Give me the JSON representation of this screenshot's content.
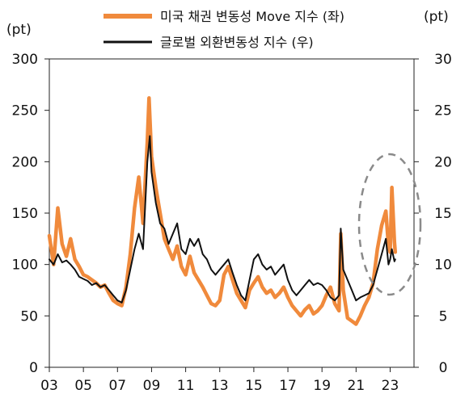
{
  "chart_data": {
    "type": "line",
    "title": "",
    "left_unit": "(pt)",
    "right_unit": "(pt)",
    "x_tick_labels": [
      "03",
      "05",
      "07",
      "09",
      "11",
      "13",
      "15",
      "17",
      "19",
      "21",
      "23"
    ],
    "x_tick_years": [
      2003,
      2005,
      2007,
      2009,
      2011,
      2013,
      2015,
      2017,
      2019,
      2021,
      2023
    ],
    "xlim": [
      2003,
      2024.4
    ],
    "y_left_ticks": [
      "0",
      "50",
      "100",
      "150",
      "200",
      "250",
      "300"
    ],
    "y_right_ticks": [
      "0",
      "5",
      "10",
      "15",
      "20",
      "25",
      "30"
    ],
    "ylim_left": [
      0,
      300
    ],
    "ylim_right": [
      0,
      30
    ],
    "grid": false,
    "legend_position": "top",
    "annotation": "dashed-ellipse-around-2022-2023",
    "series": [
      {
        "name": "미국 채권 변동성 Move 지수 (좌)",
        "axis": "left",
        "color": "#f08a3c",
        "points": [
          [
            2003.0,
            128
          ],
          [
            2003.25,
            100
          ],
          [
            2003.5,
            155
          ],
          [
            2003.75,
            120
          ],
          [
            2004.0,
            108
          ],
          [
            2004.25,
            125
          ],
          [
            2004.5,
            105
          ],
          [
            2004.75,
            98
          ],
          [
            2005.0,
            90
          ],
          [
            2005.25,
            88
          ],
          [
            2005.5,
            85
          ],
          [
            2005.75,
            82
          ],
          [
            2006.0,
            78
          ],
          [
            2006.25,
            80
          ],
          [
            2006.5,
            72
          ],
          [
            2006.75,
            65
          ],
          [
            2007.0,
            62
          ],
          [
            2007.25,
            60
          ],
          [
            2007.5,
            78
          ],
          [
            2007.75,
            110
          ],
          [
            2008.0,
            155
          ],
          [
            2008.25,
            185
          ],
          [
            2008.5,
            140
          ],
          [
            2008.75,
            220
          ],
          [
            2008.85,
            262
          ],
          [
            2009.0,
            205
          ],
          [
            2009.25,
            175
          ],
          [
            2009.5,
            150
          ],
          [
            2009.75,
            125
          ],
          [
            2010.0,
            115
          ],
          [
            2010.25,
            105
          ],
          [
            2010.5,
            118
          ],
          [
            2010.75,
            98
          ],
          [
            2011.0,
            90
          ],
          [
            2011.25,
            108
          ],
          [
            2011.5,
            92
          ],
          [
            2011.75,
            85
          ],
          [
            2012.0,
            78
          ],
          [
            2012.25,
            70
          ],
          [
            2012.5,
            62
          ],
          [
            2012.75,
            60
          ],
          [
            2013.0,
            65
          ],
          [
            2013.25,
            90
          ],
          [
            2013.5,
            98
          ],
          [
            2013.75,
            85
          ],
          [
            2014.0,
            72
          ],
          [
            2014.25,
            65
          ],
          [
            2014.5,
            58
          ],
          [
            2014.75,
            75
          ],
          [
            2015.0,
            82
          ],
          [
            2015.25,
            88
          ],
          [
            2015.5,
            78
          ],
          [
            2015.75,
            72
          ],
          [
            2016.0,
            75
          ],
          [
            2016.25,
            68
          ],
          [
            2016.5,
            72
          ],
          [
            2016.75,
            78
          ],
          [
            2017.0,
            68
          ],
          [
            2017.25,
            60
          ],
          [
            2017.5,
            55
          ],
          [
            2017.75,
            50
          ],
          [
            2018.0,
            56
          ],
          [
            2018.25,
            60
          ],
          [
            2018.5,
            52
          ],
          [
            2018.75,
            55
          ],
          [
            2019.0,
            60
          ],
          [
            2019.25,
            70
          ],
          [
            2019.5,
            78
          ],
          [
            2019.75,
            62
          ],
          [
            2020.0,
            55
          ],
          [
            2020.1,
            130
          ],
          [
            2020.25,
            75
          ],
          [
            2020.5,
            48
          ],
          [
            2020.75,
            45
          ],
          [
            2021.0,
            42
          ],
          [
            2021.25,
            50
          ],
          [
            2021.5,
            60
          ],
          [
            2021.75,
            68
          ],
          [
            2022.0,
            82
          ],
          [
            2022.25,
            115
          ],
          [
            2022.5,
            138
          ],
          [
            2022.75,
            152
          ],
          [
            2022.9,
            118
          ],
          [
            2023.0,
            112
          ],
          [
            2023.1,
            175
          ],
          [
            2023.25,
            122
          ],
          [
            2023.3,
            112
          ]
        ]
      },
      {
        "name": "글로벌 외환변동성 지수 (우)",
        "axis": "right",
        "color": "#111111",
        "points": [
          [
            2003.0,
            10.5
          ],
          [
            2003.25,
            10.0
          ],
          [
            2003.5,
            11.0
          ],
          [
            2003.75,
            10.2
          ],
          [
            2004.0,
            10.4
          ],
          [
            2004.25,
            10.0
          ],
          [
            2004.5,
            9.5
          ],
          [
            2004.75,
            8.8
          ],
          [
            2005.0,
            8.6
          ],
          [
            2005.25,
            8.4
          ],
          [
            2005.5,
            8.0
          ],
          [
            2005.75,
            8.2
          ],
          [
            2006.0,
            7.8
          ],
          [
            2006.25,
            8.0
          ],
          [
            2006.5,
            7.5
          ],
          [
            2006.75,
            7.0
          ],
          [
            2007.0,
            6.5
          ],
          [
            2007.25,
            6.3
          ],
          [
            2007.5,
            7.5
          ],
          [
            2007.75,
            9.5
          ],
          [
            2008.0,
            11.5
          ],
          [
            2008.25,
            13.0
          ],
          [
            2008.5,
            11.5
          ],
          [
            2008.75,
            20.0
          ],
          [
            2008.9,
            22.5
          ],
          [
            2009.0,
            19.0
          ],
          [
            2009.25,
            16.0
          ],
          [
            2009.5,
            14.0
          ],
          [
            2009.75,
            13.5
          ],
          [
            2010.0,
            12.0
          ],
          [
            2010.25,
            13.0
          ],
          [
            2010.5,
            14.0
          ],
          [
            2010.75,
            11.5
          ],
          [
            2011.0,
            11.0
          ],
          [
            2011.25,
            12.5
          ],
          [
            2011.5,
            11.8
          ],
          [
            2011.75,
            12.5
          ],
          [
            2012.0,
            11.0
          ],
          [
            2012.25,
            10.5
          ],
          [
            2012.5,
            9.5
          ],
          [
            2012.75,
            9.0
          ],
          [
            2013.0,
            9.5
          ],
          [
            2013.25,
            10.0
          ],
          [
            2013.5,
            10.5
          ],
          [
            2013.75,
            9.2
          ],
          [
            2014.0,
            8.0
          ],
          [
            2014.25,
            7.0
          ],
          [
            2014.5,
            6.5
          ],
          [
            2014.75,
            8.5
          ],
          [
            2015.0,
            10.5
          ],
          [
            2015.25,
            11.0
          ],
          [
            2015.5,
            10.0
          ],
          [
            2015.75,
            9.5
          ],
          [
            2016.0,
            9.8
          ],
          [
            2016.25,
            9.0
          ],
          [
            2016.5,
            9.5
          ],
          [
            2016.75,
            10.0
          ],
          [
            2017.0,
            8.5
          ],
          [
            2017.25,
            7.5
          ],
          [
            2017.5,
            7.0
          ],
          [
            2017.75,
            7.5
          ],
          [
            2018.0,
            8.0
          ],
          [
            2018.25,
            8.5
          ],
          [
            2018.5,
            8.0
          ],
          [
            2018.75,
            8.2
          ],
          [
            2019.0,
            8.0
          ],
          [
            2019.25,
            7.5
          ],
          [
            2019.5,
            6.8
          ],
          [
            2019.75,
            6.5
          ],
          [
            2020.0,
            7.0
          ],
          [
            2020.1,
            13.5
          ],
          [
            2020.25,
            9.5
          ],
          [
            2020.5,
            8.5
          ],
          [
            2020.75,
            7.5
          ],
          [
            2021.0,
            6.5
          ],
          [
            2021.25,
            6.8
          ],
          [
            2021.5,
            7.0
          ],
          [
            2021.75,
            7.2
          ],
          [
            2022.0,
            8.0
          ],
          [
            2022.25,
            9.5
          ],
          [
            2022.5,
            11.0
          ],
          [
            2022.75,
            12.5
          ],
          [
            2022.9,
            10.0
          ],
          [
            2023.0,
            10.5
          ],
          [
            2023.1,
            11.5
          ],
          [
            2023.25,
            10.3
          ],
          [
            2023.3,
            10.5
          ]
        ]
      }
    ]
  }
}
